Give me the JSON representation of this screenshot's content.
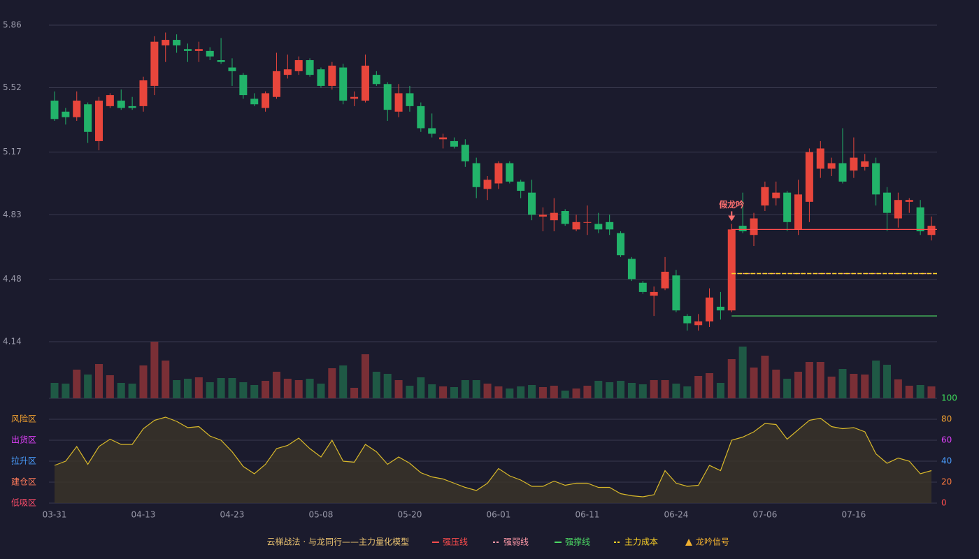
{
  "chart_data": {
    "type": "candlestick",
    "categories": [
      "03-31",
      null,
      null,
      null,
      null,
      null,
      null,
      null,
      "04-13",
      null,
      null,
      null,
      null,
      null,
      null,
      null,
      "04-23",
      null,
      null,
      null,
      null,
      null,
      null,
      null,
      "05-08",
      null,
      null,
      null,
      null,
      null,
      null,
      null,
      "05-20",
      null,
      null,
      null,
      null,
      null,
      null,
      null,
      "06-01",
      null,
      null,
      null,
      null,
      null,
      null,
      null,
      "06-11",
      null,
      null,
      null,
      null,
      null,
      null,
      null,
      "06-24",
      null,
      null,
      null,
      null,
      null,
      null,
      null,
      "07-06",
      null,
      null,
      null,
      null,
      null,
      null,
      null,
      "07-16",
      null,
      null,
      null,
      null,
      null,
      null,
      null
    ],
    "open": [
      5.45,
      5.39,
      5.36,
      5.43,
      5.23,
      5.42,
      5.45,
      5.42,
      5.42,
      5.53,
      5.75,
      5.78,
      5.73,
      5.72,
      5.72,
      5.67,
      5.63,
      5.59,
      5.46,
      5.41,
      5.47,
      5.59,
      5.61,
      5.67,
      5.62,
      5.53,
      5.63,
      5.46,
      5.45,
      5.59,
      5.54,
      5.39,
      5.49,
      5.42,
      5.3,
      5.24,
      5.23,
      5.21,
      5.11,
      4.97,
      5.0,
      5.11,
      5.01,
      4.95,
      4.82,
      4.8,
      4.85,
      4.75,
      4.79,
      4.78,
      4.79,
      4.73,
      4.59,
      4.46,
      4.39,
      4.43,
      4.5,
      4.28,
      4.23,
      4.25,
      4.33,
      4.31,
      4.77,
      4.72,
      4.88,
      4.92,
      4.95,
      4.75,
      4.9,
      5.08,
      5.08,
      5.11,
      5.07,
      5.09,
      5.11,
      4.95,
      4.81,
      4.9,
      4.87,
      4.72
    ],
    "close": [
      5.35,
      5.36,
      5.45,
      5.28,
      5.45,
      5.48,
      5.41,
      5.41,
      5.56,
      5.77,
      5.78,
      5.75,
      5.72,
      5.73,
      5.69,
      5.66,
      5.61,
      5.48,
      5.43,
      5.49,
      5.61,
      5.62,
      5.67,
      5.59,
      5.53,
      5.64,
      5.45,
      5.47,
      5.64,
      5.54,
      5.4,
      5.49,
      5.42,
      5.3,
      5.27,
      5.25,
      5.2,
      5.12,
      4.98,
      5.02,
      5.11,
      5.01,
      4.96,
      4.83,
      4.83,
      4.84,
      4.78,
      4.79,
      4.79,
      4.75,
      4.75,
      4.61,
      4.48,
      4.41,
      4.41,
      4.52,
      4.31,
      4.24,
      4.25,
      4.38,
      4.31,
      4.75,
      4.74,
      4.81,
      4.98,
      4.95,
      4.79,
      4.94,
      5.17,
      5.19,
      5.11,
      5.01,
      5.14,
      5.12,
      4.94,
      4.84,
      4.91,
      4.91,
      4.74,
      4.77
    ],
    "high": [
      5.5,
      5.41,
      5.5,
      5.44,
      5.47,
      5.49,
      5.51,
      5.47,
      5.58,
      5.8,
      5.82,
      5.81,
      5.76,
      5.77,
      5.74,
      5.79,
      5.68,
      5.6,
      5.49,
      5.5,
      5.71,
      5.7,
      5.69,
      5.68,
      5.63,
      5.66,
      5.65,
      5.5,
      5.7,
      5.61,
      5.55,
      5.54,
      5.53,
      5.44,
      5.38,
      5.27,
      5.25,
      5.24,
      5.14,
      5.04,
      5.12,
      5.12,
      5.02,
      5.02,
      4.87,
      4.92,
      4.86,
      4.83,
      4.88,
      4.84,
      4.83,
      4.74,
      4.6,
      4.47,
      4.44,
      4.6,
      4.53,
      4.29,
      4.29,
      4.43,
      4.41,
      4.78,
      4.95,
      4.84,
      5.01,
      5.01,
      4.96,
      5.02,
      5.19,
      5.23,
      5.14,
      5.3,
      5.25,
      5.16,
      5.14,
      4.98,
      4.95,
      4.92,
      4.91,
      4.82
    ],
    "low": [
      5.34,
      5.32,
      5.34,
      5.22,
      5.18,
      5.41,
      5.4,
      5.4,
      5.39,
      5.48,
      5.66,
      5.71,
      5.66,
      5.66,
      5.67,
      5.65,
      5.53,
      5.46,
      5.42,
      5.39,
      5.46,
      5.57,
      5.59,
      5.58,
      5.52,
      5.51,
      5.43,
      5.42,
      5.44,
      5.53,
      5.34,
      5.36,
      5.39,
      5.28,
      5.25,
      5.19,
      5.19,
      5.09,
      4.92,
      4.91,
      4.97,
      5.0,
      4.92,
      4.8,
      4.74,
      4.74,
      4.77,
      4.74,
      4.72,
      4.73,
      4.72,
      4.6,
      4.47,
      4.4,
      4.28,
      4.42,
      4.3,
      4.2,
      4.2,
      4.22,
      4.26,
      4.3,
      4.73,
      4.66,
      4.85,
      4.88,
      4.74,
      4.72,
      4.79,
      5.03,
      5.04,
      5.0,
      5.03,
      5.07,
      4.88,
      4.74,
      4.76,
      4.84,
      4.72,
      4.69
    ],
    "volume": [
      22,
      21,
      41,
      34,
      49,
      33,
      22,
      21,
      47,
      81,
      54,
      26,
      28,
      30,
      23,
      29,
      29,
      23,
      19,
      25,
      38,
      28,
      26,
      28,
      21,
      43,
      47,
      15,
      63,
      38,
      35,
      26,
      18,
      30,
      20,
      17,
      16,
      26,
      26,
      21,
      17,
      14,
      17,
      19,
      16,
      18,
      11,
      14,
      18,
      25,
      23,
      25,
      22,
      20,
      26,
      26,
      21,
      17,
      32,
      36,
      22,
      56,
      74,
      44,
      61,
      41,
      28,
      38,
      52,
      52,
      31,
      42,
      35,
      34,
      54,
      48,
      27,
      18,
      19,
      17
    ],
    "indicator": [
      36,
      40,
      54,
      37,
      54,
      61,
      56,
      56,
      71,
      79,
      82,
      78,
      72,
      73,
      64,
      60,
      49,
      35,
      28,
      37,
      52,
      55,
      62,
      52,
      44,
      60,
      40,
      39,
      56,
      49,
      37,
      44,
      38,
      29,
      25,
      23,
      19,
      15,
      12,
      19,
      33,
      26,
      22,
      16,
      16,
      21,
      17,
      19,
      19,
      15,
      15,
      9,
      7,
      6,
      8,
      31,
      19,
      16,
      17,
      36,
      31,
      60,
      63,
      68,
      76,
      75,
      61,
      70,
      79,
      81,
      73,
      71,
      72,
      68,
      47,
      38,
      43,
      40,
      28,
      31
    ],
    "up_color": "#e8463c",
    "down_color": "#22b36a",
    "volume_up_color": "#7a2f36",
    "volume_down_color": "#1f5945",
    "ylim": [
      4.14,
      5.86
    ],
    "yticks": [
      4.14,
      4.48,
      4.83,
      5.17,
      5.52,
      5.86
    ],
    "y2lim": [
      0,
      100
    ],
    "y2ticks": [
      0,
      20,
      40,
      60,
      80,
      100
    ],
    "y2tick_colors": [
      "#ff4d4d",
      "#ff7a3d",
      "#4a9eff",
      "#e040fb",
      "#f0a030",
      "#3ddc5a"
    ],
    "zones": [
      {
        "label": "风险区",
        "value": 80,
        "color": "#f0a030"
      },
      {
        "label": "出货区",
        "value": 60,
        "color": "#e040fb"
      },
      {
        "label": "拉升区",
        "value": 40,
        "color": "#4a9eff"
      },
      {
        "label": "建仓区",
        "value": 20,
        "color": "#ff7a5a"
      },
      {
        "label": "低吸区",
        "value": 0,
        "color": "#ff4d6a"
      }
    ],
    "indicator_color": "#d9b92a",
    "grid": true,
    "levels": [
      {
        "name": "强压线",
        "value": 4.75,
        "color": "#ff4d4d",
        "dash": "solid",
        "start": 61
      },
      {
        "name": "强弱线",
        "value": 4.51,
        "color": "#ff9aa8",
        "dash": "dotted",
        "start": 61
      },
      {
        "name": "强撑线",
        "value": 4.28,
        "color": "#4cd964",
        "dash": "solid",
        "start": 61
      },
      {
        "name": "主力成本",
        "value": 4.51,
        "color": "#ffd426",
        "dash": "dashed",
        "start": 61
      }
    ],
    "signal": {
      "name": "龙吟信号",
      "label": "假龙吟",
      "index": 61,
      "color": "#f0b030",
      "label_color": "#ff7070"
    },
    "legend_title": "云梯战法 · 与龙同行——主力量化模型",
    "legend_title_color": "#e8c170"
  }
}
